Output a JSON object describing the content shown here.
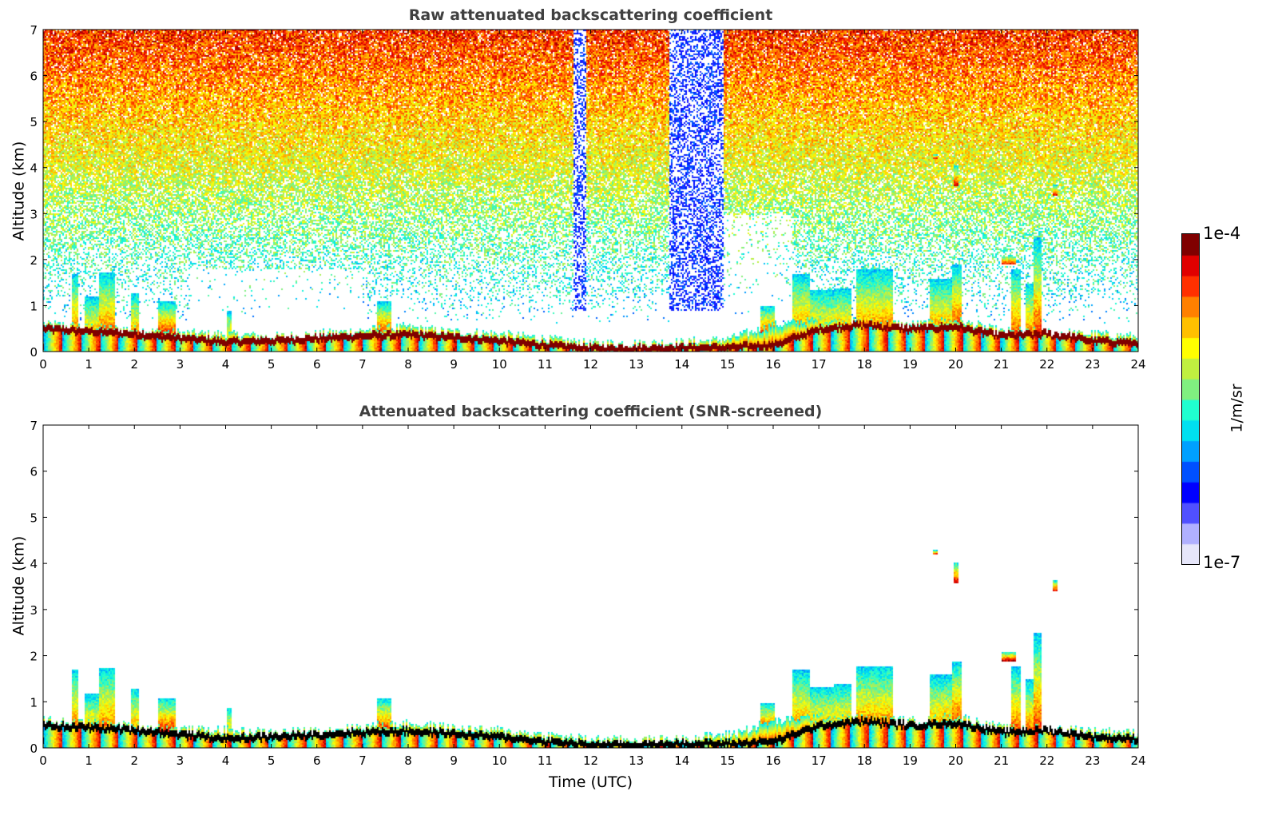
{
  "chart_data": [
    {
      "type": "heatmap",
      "title": "Raw attenuated backscattering coefficient",
      "xlabel": "",
      "ylabel": "Altitude (km)",
      "xlim": [
        0,
        24
      ],
      "ylim": [
        0,
        7
      ],
      "xticks": [
        "0",
        "1",
        "2",
        "3",
        "4",
        "5",
        "6",
        "7",
        "8",
        "9",
        "10",
        "11",
        "12",
        "13",
        "14",
        "15",
        "16",
        "17",
        "18",
        "19",
        "20",
        "21",
        "22",
        "23",
        "24"
      ],
      "yticks": [
        "0",
        "1",
        "2",
        "3",
        "4",
        "5",
        "6",
        "7"
      ],
      "screened": false
    },
    {
      "type": "heatmap",
      "title": "Attenuated backscattering coefficient (SNR-screened)",
      "xlabel": "Time (UTC)",
      "ylabel": "Altitude (km)",
      "xlim": [
        0,
        24
      ],
      "ylim": [
        0,
        7
      ],
      "xticks": [
        "0",
        "1",
        "2",
        "3",
        "4",
        "5",
        "6",
        "7",
        "8",
        "9",
        "10",
        "11",
        "12",
        "13",
        "14",
        "15",
        "16",
        "17",
        "18",
        "19",
        "20",
        "21",
        "22",
        "23",
        "24"
      ],
      "yticks": [
        "0",
        "1",
        "2",
        "3",
        "4",
        "5",
        "6",
        "7"
      ],
      "screened": true
    }
  ],
  "colorbar": {
    "label": "1/m/sr",
    "min_label": "1e-7",
    "max_label": "1e-4",
    "scale": "log",
    "colormap": [
      "#e6e6fa",
      "#b0b0ff",
      "#5050ff",
      "#0000ff",
      "#0050ff",
      "#00a0ff",
      "#00e0f0",
      "#20ffd0",
      "#80f080",
      "#c0f040",
      "#ffff00",
      "#ffc000",
      "#ff8000",
      "#ff3000",
      "#e00000",
      "#800000"
    ]
  },
  "profile": {
    "hours": [
      0,
      1,
      2,
      3,
      4,
      5,
      6,
      7,
      8,
      9,
      10,
      11,
      12,
      13,
      14,
      15,
      16,
      17,
      18,
      19,
      20,
      21,
      22,
      23,
      24
    ],
    "aerosol_top_km": [
      0.62,
      0.55,
      0.5,
      0.42,
      0.4,
      0.35,
      0.4,
      0.48,
      0.55,
      0.45,
      0.4,
      0.3,
      0.2,
      0.2,
      0.22,
      0.3,
      0.6,
      0.7,
      0.65,
      0.6,
      0.7,
      0.45,
      0.45,
      0.4,
      0.35
    ],
    "strong_layer_km": [
      0.5,
      0.45,
      0.4,
      0.3,
      0.22,
      0.25,
      0.3,
      0.35,
      0.38,
      0.32,
      0.25,
      0.15,
      0.08,
      0.08,
      0.1,
      0.1,
      0.15,
      0.5,
      0.6,
      0.5,
      0.55,
      0.35,
      0.4,
      0.25,
      0.2
    ]
  },
  "cloud_features": [
    [
      0.6,
      0.75,
      0,
      1.7
    ],
    [
      0.9,
      1.2,
      0,
      1.2
    ],
    [
      1.2,
      1.55,
      0,
      1.75
    ],
    [
      1.9,
      2.1,
      0,
      1.3
    ],
    [
      2.5,
      2.9,
      0.3,
      1.1
    ],
    [
      4.0,
      4.1,
      0,
      0.9
    ],
    [
      7.3,
      7.6,
      0.3,
      1.1
    ],
    [
      15.7,
      16.0,
      0.3,
      1.0
    ],
    [
      16.4,
      16.8,
      0,
      1.7
    ],
    [
      16.8,
      17.3,
      0,
      1.35
    ],
    [
      17.3,
      17.7,
      0,
      1.4
    ],
    [
      17.8,
      18.6,
      0,
      1.8
    ],
    [
      19.4,
      19.9,
      0,
      1.6
    ],
    [
      19.9,
      20.1,
      0.3,
      1.9
    ],
    [
      21.2,
      21.4,
      0,
      1.8
    ],
    [
      21.5,
      21.7,
      0,
      1.5
    ],
    [
      21.7,
      21.85,
      0,
      2.5
    ],
    [
      21.0,
      21.3,
      1.9,
      2.1
    ],
    [
      22.1,
      22.2,
      3.4,
      3.65
    ],
    [
      19.95,
      20.05,
      3.6,
      4.05
    ],
    [
      19.5,
      19.6,
      4.2,
      4.3
    ]
  ],
  "noise_gaps": [
    [
      11.6,
      11.9
    ],
    [
      13.7,
      14.9
    ]
  ]
}
